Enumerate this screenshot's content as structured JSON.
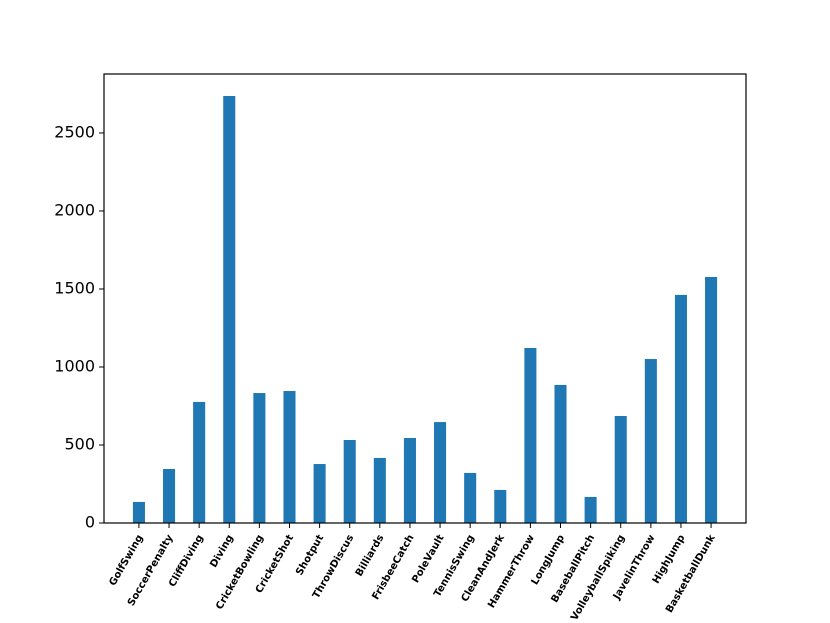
{
  "chart_data": {
    "type": "bar",
    "categories": [
      "GolfSwing",
      "SoccerPenalty",
      "CliffDiving",
      "Diving",
      "CricketBowling",
      "CricketShot",
      "Shotput",
      "ThrowDiscus",
      "Billiards",
      "FrisbeeCatch",
      "PoleVault",
      "TennisSwing",
      "CleanAndJerk",
      "HammerThrow",
      "LongJump",
      "BaseballPitch",
      "VolleyballSpiking",
      "JavelinThrow",
      "HighJump",
      "BasketballDunk"
    ],
    "values": [
      135,
      346,
      776,
      2737,
      833,
      846,
      378,
      532,
      417,
      545,
      647,
      321,
      212,
      1122,
      885,
      167,
      686,
      1051,
      1462,
      1577
    ],
    "color": "#1f77b4",
    "ylim": [
      0,
      2878
    ],
    "yticks": [
      0,
      500,
      1000,
      1500,
      2000,
      2500
    ],
    "grid": false
  }
}
